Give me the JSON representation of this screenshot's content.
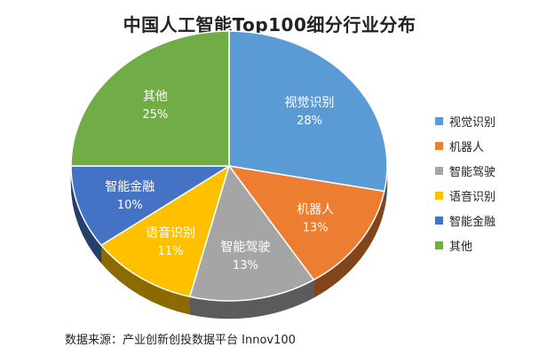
{
  "title": "中国人工智能Top100细分行业分布",
  "source": "数据来源：产业创新创投数据平台 Innov100",
  "colors": {
    "视觉识别": "#5B9BD5",
    "机器人": "#ED7D31",
    "智能驾驶": "#A5A5A5",
    "语音识别": "#FFC000",
    "智能金融": "#4472C4",
    "其他": "#70AD47"
  },
  "chart_data": {
    "type": "pie",
    "title": "中国人工智能Top100细分行业分布",
    "style": "3d",
    "legend_position": "right",
    "slices": [
      {
        "label": "视觉识别",
        "value": 28,
        "display": "28%"
      },
      {
        "label": "机器人",
        "value": 13,
        "display": "13%"
      },
      {
        "label": "智能驾驶",
        "value": 13,
        "display": "13%"
      },
      {
        "label": "语音识别",
        "value": 11,
        "display": "11%"
      },
      {
        "label": "智能金融",
        "value": 10,
        "display": "10%"
      },
      {
        "label": "其他",
        "value": 25,
        "display": "25%"
      }
    ]
  }
}
